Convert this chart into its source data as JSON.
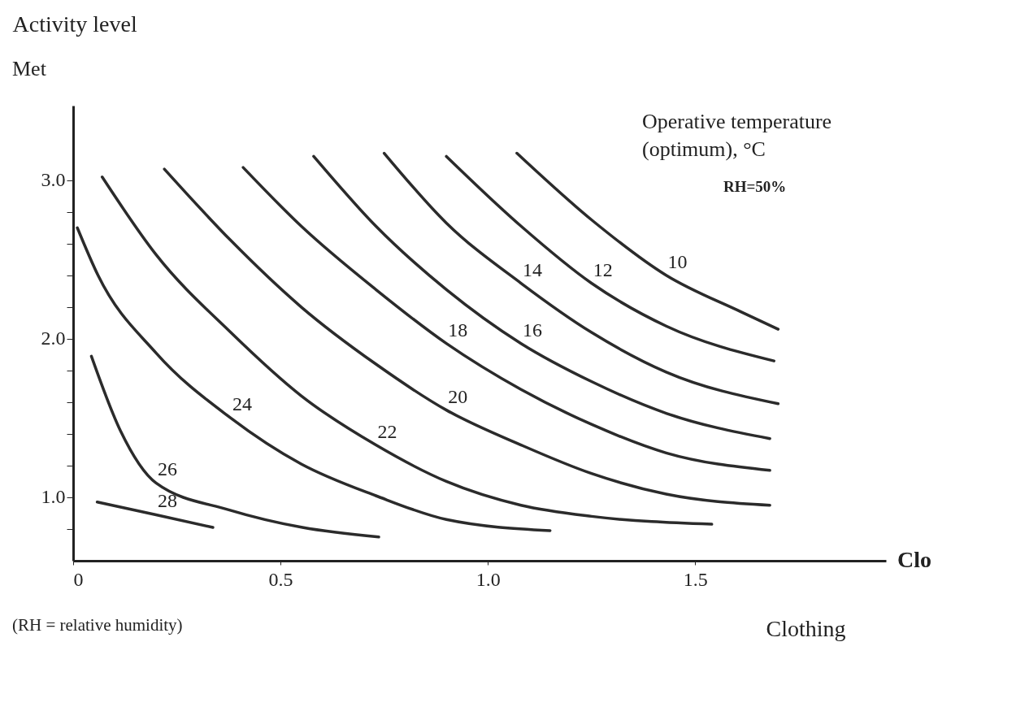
{
  "chart_data": {
    "type": "line",
    "xlabel": "Clothing",
    "ylabel": "Activity level",
    "xlim": [
      0,
      1.96
    ],
    "ylim": [
      0.6,
      3.47
    ],
    "xticks": [
      0,
      0.5,
      {
        "value": 1,
        "label": "1.0"
      },
      1.5
    ],
    "yticks": [
      {
        "value": 0.8,
        "label": null
      },
      {
        "value": 1,
        "label": "1.0"
      },
      {
        "value": 1.2,
        "label": null
      },
      {
        "value": 1.4,
        "label": null
      },
      {
        "value": 1.6,
        "label": null
      },
      {
        "value": 1.8,
        "label": null
      },
      {
        "value": 2,
        "label": "2.0"
      },
      {
        "value": 2.2,
        "label": null
      },
      {
        "value": 2.4,
        "label": null
      },
      {
        "value": 2.6,
        "label": null
      },
      {
        "value": 2.8,
        "label": null
      },
      {
        "value": 3,
        "label": "3.0"
      }
    ],
    "grid": false,
    "legend": false,
    "marker": "none",
    "line_style": "solid",
    "annotations": [
      "Met",
      "Clo",
      "Operative temperature (optimum), °C",
      "RH=50%",
      "(RH = relative humidity)"
    ],
    "series": [
      {
        "name": "10",
        "color": "#2b2b2b",
        "x": [
          1.07,
          1.25,
          1.43,
          1.61,
          1.7
        ],
        "values": [
          3.17,
          2.75,
          2.4,
          2.17,
          2.06
        ]
      },
      {
        "name": "12",
        "color": "#2b2b2b",
        "x": [
          0.9,
          1.08,
          1.25,
          1.43,
          1.69
        ],
        "values": [
          3.15,
          2.71,
          2.35,
          2.08,
          1.86
        ]
      },
      {
        "name": "14",
        "color": "#2b2b2b",
        "x": [
          0.75,
          0.9,
          1.08,
          1.25,
          1.43,
          1.7
        ],
        "values": [
          3.17,
          2.73,
          2.35,
          2.04,
          1.79,
          1.59
        ]
      },
      {
        "name": "16",
        "color": "#2b2b2b",
        "x": [
          0.58,
          0.73,
          0.9,
          1.08,
          1.25,
          1.43,
          1.68
        ],
        "values": [
          3.15,
          2.71,
          2.31,
          1.97,
          1.73,
          1.53,
          1.37
        ]
      },
      {
        "name": "18",
        "color": "#2b2b2b",
        "x": [
          0.41,
          0.55,
          0.73,
          0.9,
          1.08,
          1.25,
          1.43,
          1.68
        ],
        "values": [
          3.08,
          2.71,
          2.31,
          1.97,
          1.68,
          1.46,
          1.28,
          1.17
        ]
      },
      {
        "name": "20",
        "color": "#2b2b2b",
        "x": [
          0.22,
          0.38,
          0.55,
          0.73,
          0.9,
          1.08,
          1.25,
          1.43,
          1.68
        ],
        "values": [
          3.07,
          2.62,
          2.2,
          1.84,
          1.55,
          1.33,
          1.15,
          1.02,
          0.95
        ]
      },
      {
        "name": "22",
        "color": "#2b2b2b",
        "x": [
          0.07,
          0.2,
          0.38,
          0.55,
          0.73,
          0.9,
          1.08,
          1.25,
          1.54
        ],
        "values": [
          3.02,
          2.53,
          2.04,
          1.64,
          1.33,
          1.1,
          0.95,
          0.88,
          0.83
        ]
      },
      {
        "name": "24",
        "color": "#2b2b2b",
        "x": [
          0.01,
          0.06,
          0.2,
          0.38,
          0.55,
          0.73,
          0.9,
          1.15
        ],
        "values": [
          2.7,
          2.4,
          1.91,
          1.5,
          1.21,
          1.01,
          0.86,
          0.79
        ]
      },
      {
        "name": "26",
        "color": "#2b2b2b",
        "x": [
          0.044,
          0.114,
          0.2,
          0.377,
          0.553,
          0.737
        ],
        "values": [
          1.89,
          1.42,
          1.09,
          0.92,
          0.81,
          0.75
        ]
      },
      {
        "name": "28",
        "color": "#2b2b2b",
        "x": [
          0.058,
          0.2,
          0.337
        ],
        "values": [
          0.97,
          0.89,
          0.81
        ]
      }
    ]
  }
}
